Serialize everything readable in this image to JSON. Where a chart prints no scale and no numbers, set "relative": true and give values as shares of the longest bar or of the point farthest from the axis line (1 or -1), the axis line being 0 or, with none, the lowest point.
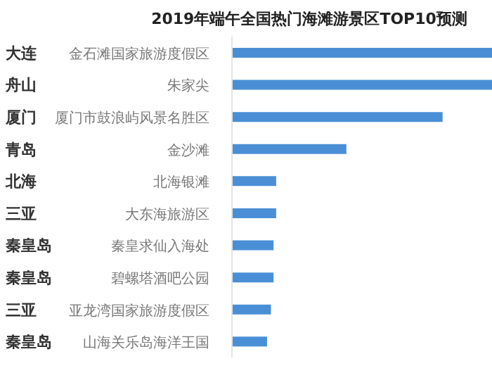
{
  "chart_data": {
    "type": "bar",
    "orientation": "horizontal",
    "relative": true,
    "title": "2019年端午全国热门海滩游景区TOP10预测",
    "categories": [
      "金石滩国家旅游度假区",
      "朱家尖",
      "厦门市鼓浪屿风景名胜区",
      "金沙滩",
      "北海银滩",
      "大东海旅游区",
      "秦皇求仙入海处",
      "碧螺塔酒吧公园",
      "亚龙湾国家旅游度假区",
      "山海关乐岛海洋王国"
    ],
    "y2_categories": [
      "大连",
      "舟山",
      "厦门",
      "青岛",
      "北海",
      "三亚",
      "秦皇岛",
      "秦皇岛",
      "三亚",
      "秦皇岛"
    ],
    "values": [
      1,
      1,
      0.81,
      0.44,
      0.17,
      0.17,
      0.16,
      0.16,
      0.15,
      0.135
    ],
    "color": "#4a8fd6"
  }
}
